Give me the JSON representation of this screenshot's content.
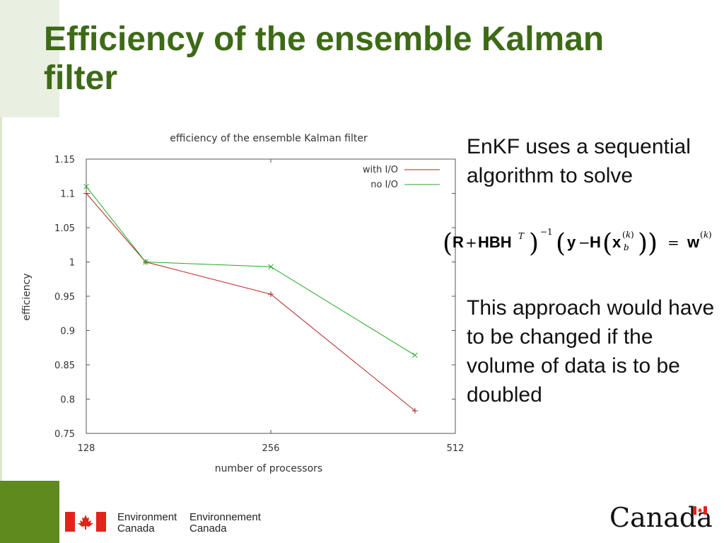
{
  "slide": {
    "title": "Efficiency of the ensemble Kalman filter",
    "text1": "EnKF uses a sequential algorithm to solve",
    "text2": "This approach would have to be changed if the volume of data is to be doubled",
    "formula": {
      "R": "R",
      "plus": "+",
      "HBH": "HBH",
      "T": "T",
      "inv": "−1",
      "y": "y",
      "minus": "−",
      "H": "H",
      "x": "x",
      "k": "k",
      "b": "b",
      "eq": "=",
      "w": "w"
    }
  },
  "footer": {
    "dept_en_1": "Environment",
    "dept_en_2": "Canada",
    "dept_fr_1": "Environnement",
    "dept_fr_2": "Canada",
    "wordmark": "Canada"
  },
  "colors": {
    "title": "#3d6a17",
    "series_with_io": "#b22222",
    "series_no_io": "#22aa22",
    "accent_green": "#5e8a1e"
  },
  "chart_data": {
    "type": "line",
    "title": "efficiency of the ensemble Kalman filter",
    "xlabel": "number of processors",
    "ylabel": "efficiency",
    "x_scale": "log2",
    "xlim": [
      128,
      512
    ],
    "ylim": [
      0.75,
      1.15
    ],
    "x_ticks": [
      "128",
      "256",
      "512"
    ],
    "y_ticks": [
      "0.75",
      "0.8",
      "0.85",
      "0.9",
      "0.95",
      "1",
      "1.05",
      "1.1",
      "1.15"
    ],
    "legend_position": "top-right",
    "grid": false,
    "series": [
      {
        "name": "with I/O",
        "marker": "+",
        "x": [
          128,
          160,
          256,
          440
        ],
        "y": [
          1.1,
          1.0,
          0.953,
          0.783
        ]
      },
      {
        "name": "no I/O",
        "marker": "x",
        "x": [
          128,
          160,
          256,
          440
        ],
        "y": [
          1.11,
          1.0,
          0.993,
          0.864
        ]
      }
    ]
  }
}
